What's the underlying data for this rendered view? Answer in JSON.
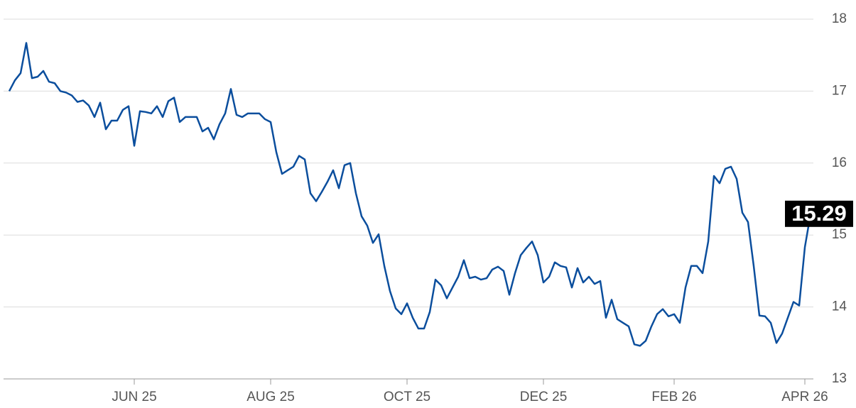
{
  "chart_data": {
    "type": "line",
    "color": "#0b4e9d",
    "categories": [
      null,
      null,
      null,
      null,
      null,
      null,
      null,
      null,
      null,
      null,
      null,
      null,
      null,
      null,
      null,
      null,
      null,
      null,
      null,
      null,
      null,
      null,
      "JUN 25",
      null,
      null,
      null,
      null,
      null,
      null,
      null,
      null,
      null,
      null,
      null,
      null,
      null,
      null,
      null,
      null,
      null,
      null,
      null,
      null,
      null,
      null,
      null,
      "AUG 25",
      null,
      null,
      null,
      null,
      null,
      null,
      null,
      null,
      null,
      null,
      null,
      null,
      null,
      null,
      null,
      null,
      null,
      null,
      null,
      null,
      null,
      null,
      null,
      "OCT 25",
      null,
      null,
      null,
      null,
      null,
      null,
      null,
      null,
      null,
      null,
      null,
      null,
      null,
      null,
      null,
      null,
      null,
      null,
      null,
      null,
      null,
      null,
      null,
      "DEC 25",
      null,
      null,
      null,
      null,
      null,
      null,
      null,
      null,
      null,
      null,
      null,
      null,
      null,
      null,
      null,
      null,
      null,
      null,
      null,
      null,
      null,
      null,
      "FEB 26",
      null,
      null,
      null,
      null,
      null,
      null,
      null,
      null,
      null,
      null,
      null,
      null,
      null,
      null,
      null,
      null,
      null,
      null,
      null,
      null,
      null,
      null,
      "APR 26",
      null
    ],
    "values": [
      17.0,
      17.15,
      17.25,
      17.67,
      17.18,
      17.2,
      17.28,
      17.13,
      17.11,
      17.0,
      16.98,
      16.94,
      16.85,
      16.87,
      16.8,
      16.64,
      16.84,
      16.47,
      16.59,
      16.59,
      16.74,
      16.79,
      16.24,
      16.72,
      16.71,
      16.69,
      16.79,
      16.64,
      16.86,
      16.91,
      16.57,
      16.64,
      16.64,
      16.64,
      16.44,
      16.49,
      16.33,
      16.54,
      16.69,
      17.03,
      16.67,
      16.64,
      16.69,
      16.69,
      16.69,
      16.61,
      16.57,
      16.15,
      15.85,
      15.9,
      15.95,
      16.1,
      16.05,
      15.58,
      15.47,
      15.6,
      15.74,
      15.9,
      15.65,
      15.97,
      16.0,
      15.58,
      15.26,
      15.13,
      14.89,
      15.01,
      14.57,
      14.22,
      13.98,
      13.9,
      14.05,
      13.85,
      13.7,
      13.7,
      13.93,
      14.38,
      14.3,
      14.12,
      14.27,
      14.42,
      14.65,
      14.4,
      14.42,
      14.38,
      14.4,
      14.52,
      14.56,
      14.5,
      14.17,
      14.47,
      14.72,
      14.82,
      14.91,
      14.72,
      14.34,
      14.42,
      14.62,
      14.57,
      14.55,
      14.27,
      14.54,
      14.34,
      14.42,
      14.32,
      14.36,
      13.85,
      14.1,
      13.83,
      13.78,
      13.73,
      13.48,
      13.46,
      13.53,
      13.73,
      13.9,
      13.97,
      13.87,
      13.9,
      13.78,
      14.27,
      14.57,
      14.57,
      14.47,
      14.91,
      15.82,
      15.72,
      15.92,
      15.95,
      15.78,
      15.31,
      15.18,
      14.57,
      13.88,
      13.87,
      13.78,
      13.5,
      13.63,
      13.85,
      14.07,
      14.02,
      14.83,
      15.29
    ],
    "ylim": [
      13,
      18
    ],
    "yticks": [
      13,
      14,
      15,
      16,
      17,
      18
    ],
    "grid": true
  }
}
